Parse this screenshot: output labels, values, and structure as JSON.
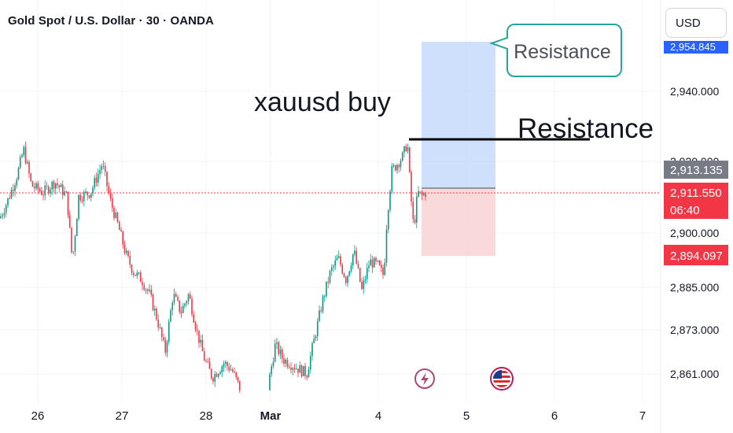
{
  "header": {
    "title": "Gold Spot / U.S. Dollar · 30 · OANDA",
    "currency_button": "USD"
  },
  "annotations": {
    "main_label": "xauusd buy",
    "resistance_line_label": "Resistance",
    "resistance_callout": "Resistance"
  },
  "price_tags": {
    "top_hidden": "2,954.845",
    "stop": "2,913.135",
    "current_price": "2,911.550",
    "countdown": "06:40",
    "target": "2,894.097"
  },
  "event_icons": [
    {
      "name": "lightning-icon",
      "x": "Mar 4"
    },
    {
      "name": "us-flag-icon",
      "x": "Mar 5"
    }
  ],
  "colors": {
    "up": "#089981",
    "down": "#f23645",
    "profit_zone": "#bbd3fb",
    "loss_zone": "#f9d2d5",
    "callout_border": "#26a69a",
    "current_price": "#f23645",
    "stop_tag": "#787b86"
  },
  "chart_data": {
    "type": "candlestick",
    "title": "Gold Spot / U.S. Dollar · 30 · OANDA",
    "x_ticks": [
      "26",
      "27",
      "28",
      "Mar",
      "4",
      "5",
      "6",
      "7"
    ],
    "y_ticks": [
      "2,940.000",
      "2,900.000",
      "2,885.000",
      "2,873.000",
      "2,861.000"
    ],
    "ylim": [
      2856,
      2960
    ],
    "ohlc_anchor_path": [
      [
        0,
        2905
      ],
      [
        10,
        2910
      ],
      [
        22,
        2917
      ],
      [
        30,
        2924
      ],
      [
        40,
        2914
      ],
      [
        55,
        2912
      ],
      [
        70,
        2915
      ],
      [
        85,
        2911
      ],
      [
        92,
        2893
      ],
      [
        100,
        2911
      ],
      [
        115,
        2912
      ],
      [
        130,
        2920
      ],
      [
        140,
        2910
      ],
      [
        150,
        2903
      ],
      [
        160,
        2895
      ],
      [
        170,
        2890
      ],
      [
        180,
        2888
      ],
      [
        190,
        2884
      ],
      [
        200,
        2877
      ],
      [
        210,
        2868
      ],
      [
        220,
        2884
      ],
      [
        230,
        2879
      ],
      [
        240,
        2884
      ],
      [
        250,
        2874
      ],
      [
        260,
        2866
      ],
      [
        270,
        2861
      ],
      [
        285,
        2865
      ],
      [
        295,
        2863
      ],
      [
        305,
        2858
      ],
      [
        342,
        2860
      ],
      [
        350,
        2870
      ],
      [
        360,
        2866
      ],
      [
        375,
        2864
      ],
      [
        390,
        2862
      ],
      [
        400,
        2872
      ],
      [
        410,
        2882
      ],
      [
        420,
        2890
      ],
      [
        430,
        2894
      ],
      [
        440,
        2888
      ],
      [
        450,
        2896
      ],
      [
        460,
        2885
      ],
      [
        470,
        2893
      ],
      [
        480,
        2892
      ],
      [
        488,
        2889
      ],
      [
        492,
        2905
      ],
      [
        498,
        2918
      ],
      [
        505,
        2920
      ],
      [
        512,
        2922
      ],
      [
        518,
        2926
      ],
      [
        522,
        2912
      ],
      [
        526,
        2902
      ],
      [
        531,
        2912
      ],
      [
        536,
        2911
      ],
      [
        541,
        2912
      ]
    ],
    "position_tool": {
      "type": "short",
      "entry": 2911.55,
      "stop": 2913.135,
      "target": 2894.097
    },
    "resistance_level": 2926.5
  }
}
